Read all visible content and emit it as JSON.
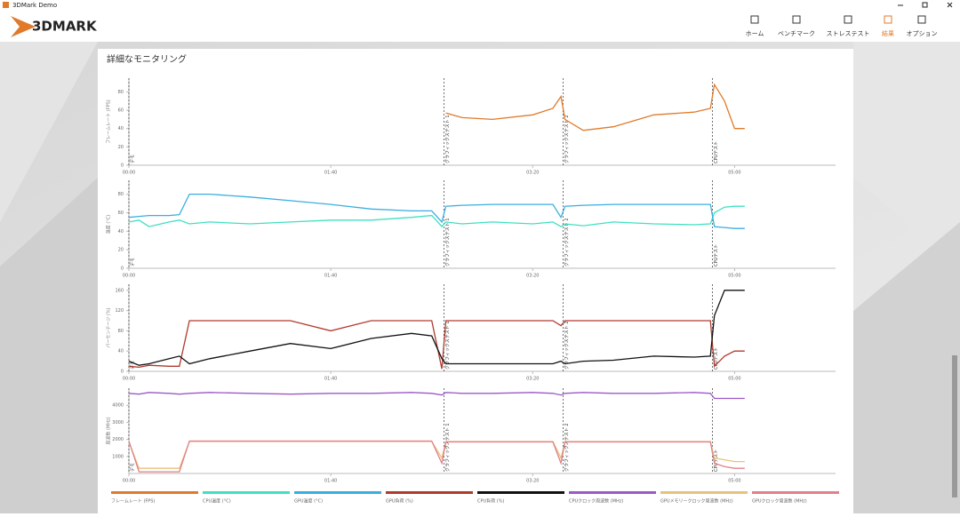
{
  "window_title": "3DMark Demo",
  "app_name": "3DMARK",
  "nav": [
    "ホーム",
    "ベンチマーク",
    "ストレステスト",
    "結果",
    "オプション"
  ],
  "active_nav": 3,
  "panel_title": "詳細なモニタリング",
  "markers": [
    {
      "x": 0,
      "label": "デモ"
    },
    {
      "x": 156,
      "label": "グラフィックステスト 1"
    },
    {
      "x": 215,
      "label": "グラフィックステスト 2"
    },
    {
      "x": 289,
      "label": "CPUテスト"
    }
  ],
  "chart_data": [
    {
      "type": "line",
      "ylabel": "フレームレート (FPS)",
      "xlim": [
        0,
        350
      ],
      "xticks": [
        {
          "value": 0,
          "label": "00:00"
        },
        {
          "value": 100,
          "label": "01:40"
        },
        {
          "value": 200,
          "label": "03:20"
        },
        {
          "value": 300,
          "label": "05:00"
        }
      ],
      "ylim": [
        0,
        95
      ],
      "yticks": [
        0,
        20,
        40,
        60,
        80
      ],
      "x": [
        0,
        5,
        10,
        20,
        25,
        30,
        40,
        60,
        80,
        100,
        120,
        140,
        150,
        155,
        157,
        165,
        180,
        200,
        210,
        214,
        216,
        225,
        240,
        260,
        280,
        288,
        290,
        295,
        300,
        305
      ],
      "series": [
        {
          "name": "フレームレート (FPS)",
          "color": "#e07a2a",
          "values": [
            null,
            null,
            null,
            null,
            null,
            null,
            null,
            null,
            null,
            null,
            null,
            null,
            null,
            null,
            57,
            52,
            50,
            55,
            62,
            75,
            50,
            38,
            42,
            55,
            58,
            62,
            88,
            70,
            40,
            40
          ]
        }
      ]
    },
    {
      "type": "line",
      "ylabel": "温度 (°C)",
      "xlim": [
        0,
        350
      ],
      "xticks": [
        {
          "value": 0,
          "label": "00:00"
        },
        {
          "value": 100,
          "label": "01:40"
        },
        {
          "value": 200,
          "label": "03:20"
        },
        {
          "value": 300,
          "label": "05:00"
        }
      ],
      "ylim": [
        0,
        95
      ],
      "yticks": [
        0,
        20,
        40,
        60,
        80
      ],
      "x": [
        0,
        5,
        10,
        20,
        25,
        30,
        40,
        60,
        80,
        100,
        120,
        140,
        150,
        155,
        157,
        165,
        180,
        200,
        210,
        214,
        216,
        225,
        240,
        260,
        280,
        288,
        290,
        295,
        300,
        305
      ],
      "series": [
        {
          "name": "CPU温度 (°C)",
          "color": "#40e0c0",
          "values": [
            50,
            52,
            45,
            50,
            52,
            48,
            50,
            48,
            50,
            52,
            52,
            55,
            57,
            45,
            50,
            48,
            50,
            48,
            50,
            45,
            48,
            46,
            50,
            48,
            47,
            48,
            60,
            66,
            67,
            67
          ]
        },
        {
          "name": "GPU温度 (°C)",
          "color": "#3aaee0",
          "values": [
            55,
            56,
            57,
            57,
            58,
            80,
            80,
            77,
            73,
            69,
            64,
            62,
            62,
            50,
            67,
            68,
            69,
            69,
            69,
            55,
            67,
            68,
            69,
            69,
            69,
            69,
            45,
            44,
            43,
            43
          ]
        }
      ]
    },
    {
      "type": "line",
      "ylabel": "パーセンテージ (%)",
      "xlim": [
        0,
        350
      ],
      "xticks": [
        {
          "value": 0,
          "label": "00:00"
        },
        {
          "value": 100,
          "label": "01:40"
        },
        {
          "value": 200,
          "label": "03:20"
        },
        {
          "value": 300,
          "label": "05:00"
        }
      ],
      "ylim": [
        0,
        172
      ],
      "yticks": [
        0,
        40,
        80,
        120,
        160
      ],
      "x": [
        0,
        5,
        10,
        20,
        25,
        30,
        40,
        60,
        80,
        100,
        120,
        140,
        150,
        155,
        157,
        165,
        180,
        200,
        210,
        214,
        216,
        225,
        240,
        260,
        280,
        288,
        290,
        295,
        300,
        305
      ],
      "series": [
        {
          "name": "GPU負荷 (%)",
          "color": "#b03a2e",
          "values": [
            10,
            8,
            12,
            10,
            10,
            100,
            100,
            100,
            100,
            80,
            100,
            100,
            100,
            5,
            100,
            100,
            100,
            100,
            100,
            90,
            100,
            100,
            100,
            100,
            100,
            100,
            10,
            30,
            40,
            40
          ]
        },
        {
          "name": "CPU負荷 (%)",
          "color": "#111111",
          "values": [
            20,
            12,
            15,
            25,
            30,
            15,
            25,
            40,
            55,
            45,
            65,
            75,
            70,
            25,
            15,
            15,
            15,
            15,
            15,
            20,
            15,
            20,
            22,
            30,
            28,
            30,
            110,
            160,
            160,
            160
          ]
        }
      ]
    },
    {
      "type": "line",
      "ylabel": "周波数 (MHz)",
      "xlim": [
        0,
        350
      ],
      "xticks": [
        {
          "value": 0,
          "label": "00:00"
        },
        {
          "value": 100,
          "label": "01:40"
        },
        {
          "value": 200,
          "label": "03:20"
        },
        {
          "value": 300,
          "label": "05:00"
        }
      ],
      "ylim": [
        0,
        5000
      ],
      "yticks": [
        1000,
        2000,
        3000,
        4000
      ],
      "x": [
        0,
        5,
        10,
        20,
        25,
        30,
        40,
        60,
        80,
        100,
        120,
        140,
        150,
        155,
        157,
        165,
        180,
        200,
        210,
        214,
        216,
        225,
        240,
        260,
        280,
        288,
        290,
        295,
        300,
        305
      ],
      "series": [
        {
          "name": "CPUクロック周波数 (MHz)",
          "color": "#9b59c6",
          "values": [
            4700,
            4650,
            4750,
            4700,
            4650,
            4700,
            4750,
            4700,
            4650,
            4700,
            4700,
            4750,
            4700,
            4600,
            4750,
            4700,
            4700,
            4750,
            4700,
            4600,
            4700,
            4750,
            4700,
            4700,
            4750,
            4700,
            4400,
            4400,
            4400,
            4400
          ]
        },
        {
          "name": "GPUメモリークロック周波数 (MHz)",
          "color": "#e8c27a",
          "values": [
            1850,
            300,
            300,
            300,
            300,
            1875,
            1875,
            1875,
            1875,
            1875,
            1875,
            1875,
            1875,
            900,
            1875,
            1875,
            1875,
            1875,
            1875,
            900,
            1875,
            1875,
            1875,
            1875,
            1875,
            1875,
            900,
            800,
            700,
            700
          ]
        },
        {
          "name": "GPUクロック周波数 (MHz)",
          "color": "#e0808a",
          "values": [
            1900,
            100,
            100,
            100,
            100,
            1900,
            1900,
            1900,
            1900,
            1900,
            1900,
            1900,
            1900,
            600,
            1850,
            1850,
            1850,
            1850,
            1850,
            600,
            1850,
            1850,
            1850,
            1850,
            1850,
            1850,
            600,
            400,
            300,
            300
          ]
        }
      ]
    }
  ]
}
